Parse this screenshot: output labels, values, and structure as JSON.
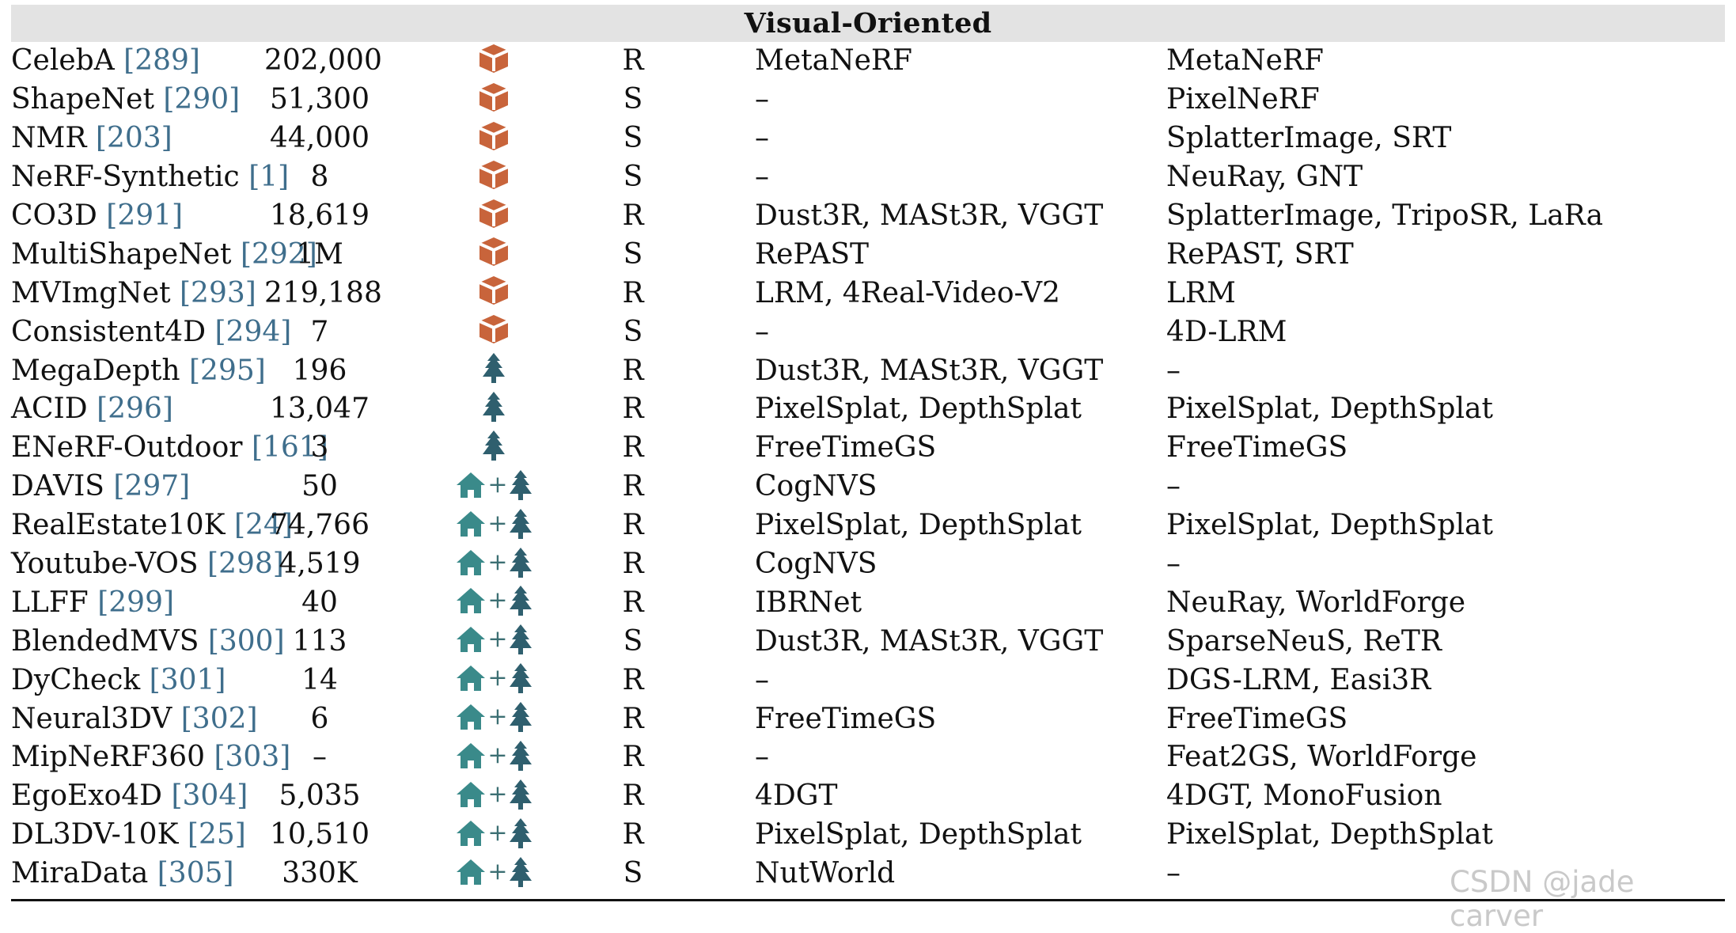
{
  "section_title": "Visual-Oriented",
  "watermark": "CSDN @jade carver",
  "colors": {
    "object": "#c8643b",
    "outdoor": "#2f5f6e",
    "indoor": "#3a8a8a",
    "reference": "#3f6e8c",
    "header_band": "#e3e3e3"
  },
  "rows": [
    {
      "name": "CelebA",
      "ref": "[289]",
      "count": "202,000",
      "icon": "cube-icon",
      "type": "R",
      "methods_a": "MetaNeRF",
      "methods_b": "MetaNeRF"
    },
    {
      "name": "ShapeNet",
      "ref": "[290]",
      "count": "51,300",
      "icon": "cube-icon",
      "type": "S",
      "methods_a": "–",
      "methods_b": "PixelNeRF"
    },
    {
      "name": "NMR",
      "ref": "[203]",
      "count": "44,000",
      "icon": "cube-icon",
      "type": "S",
      "methods_a": "–",
      "methods_b": "SplatterImage, SRT"
    },
    {
      "name": "NeRF-Synthetic",
      "ref": "[1]",
      "count": "8",
      "icon": "cube-icon",
      "type": "S",
      "methods_a": "–",
      "methods_b": "NeuRay, GNT"
    },
    {
      "name": "CO3D",
      "ref": "[291]",
      "count": "18,619",
      "icon": "cube-icon",
      "type": "R",
      "methods_a": "Dust3R, MASt3R, VGGT",
      "methods_b": "SplatterImage, TripoSR, LaRa"
    },
    {
      "name": "MultiShapeNet",
      "ref": "[292]",
      "count": "1M",
      "icon": "cube-icon",
      "type": "S",
      "methods_a": "RePAST",
      "methods_b": "RePAST, SRT"
    },
    {
      "name": "MVImgNet",
      "ref": "[293]",
      "count": "219,188",
      "icon": "cube-icon",
      "type": "R",
      "methods_a": "LRM, 4Real-Video-V2",
      "methods_b": "LRM"
    },
    {
      "name": "Consistent4D",
      "ref": "[294]",
      "count": "7",
      "icon": "cube-icon",
      "type": "S",
      "methods_a": "–",
      "methods_b": "4D-LRM"
    },
    {
      "name": "MegaDepth",
      "ref": "[295]",
      "count": "196",
      "icon": "tree-icon",
      "type": "R",
      "methods_a": "Dust3R, MASt3R, VGGT",
      "methods_b": "–"
    },
    {
      "name": "ACID",
      "ref": "[296]",
      "count": "13,047",
      "icon": "tree-icon",
      "type": "R",
      "methods_a": "PixelSplat, DepthSplat",
      "methods_b": "PixelSplat, DepthSplat"
    },
    {
      "name": "ENeRF-Outdoor",
      "ref": "[161]",
      "count": "3",
      "icon": "tree-icon",
      "type": "R",
      "methods_a": "FreeTimeGS",
      "methods_b": "FreeTimeGS"
    },
    {
      "name": "DAVIS",
      "ref": "[297]",
      "count": "50",
      "icon": "house-tree-icon",
      "type": "R",
      "methods_a": "CogNVS",
      "methods_b": "–"
    },
    {
      "name": "RealEstate10K",
      "ref": "[24]",
      "count": "74,766",
      "icon": "house-tree-icon",
      "type": "R",
      "methods_a": "PixelSplat, DepthSplat",
      "methods_b": "PixelSplat, DepthSplat"
    },
    {
      "name": "Youtube-VOS",
      "ref": "[298]",
      "count": "4,519",
      "icon": "house-tree-icon",
      "type": "R",
      "methods_a": "CogNVS",
      "methods_b": "–"
    },
    {
      "name": "LLFF",
      "ref": "[299]",
      "count": "40",
      "icon": "house-tree-icon",
      "type": "R",
      "methods_a": "IBRNet",
      "methods_b": "NeuRay, WorldForge"
    },
    {
      "name": "BlendedMVS",
      "ref": "[300]",
      "count": "113",
      "icon": "house-tree-icon",
      "type": "S",
      "methods_a": "Dust3R, MASt3R, VGGT",
      "methods_b": "SparseNeuS, ReTR"
    },
    {
      "name": "DyCheck",
      "ref": "[301]",
      "count": "14",
      "icon": "house-tree-icon",
      "type": "R",
      "methods_a": "–",
      "methods_b": "DGS-LRM, Easi3R"
    },
    {
      "name": "Neural3DV",
      "ref": "[302]",
      "count": "6",
      "icon": "house-tree-icon",
      "type": "R",
      "methods_a": "FreeTimeGS",
      "methods_b": "FreeTimeGS"
    },
    {
      "name": "MipNeRF360",
      "ref": "[303]",
      "count": "–",
      "icon": "house-tree-icon",
      "type": "R",
      "methods_a": "–",
      "methods_b": "Feat2GS, WorldForge"
    },
    {
      "name": "EgoExo4D",
      "ref": "[304]",
      "count": "5,035",
      "icon": "house-tree-icon",
      "type": "R",
      "methods_a": "4DGT",
      "methods_b": "4DGT, MonoFusion"
    },
    {
      "name": "DL3DV-10K",
      "ref": "[25]",
      "count": "10,510",
      "icon": "house-tree-icon",
      "type": "R",
      "methods_a": "PixelSplat, DepthSplat",
      "methods_b": "PixelSplat, DepthSplat"
    },
    {
      "name": "MiraData",
      "ref": "[305]",
      "count": "330K",
      "icon": "house-tree-icon",
      "type": "S",
      "methods_a": "NutWorld",
      "methods_b": "–"
    }
  ]
}
